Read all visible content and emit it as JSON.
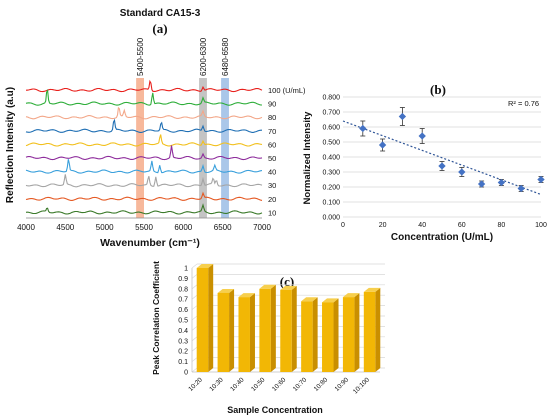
{
  "panel_a": {
    "header": "Standard CA15-3",
    "letter": "(a)",
    "band_labels": [
      "5400-5500",
      "6200-6300",
      "6480-6580"
    ],
    "concentration_unit_label": "100 (U/mL)"
  },
  "panel_b": {
    "letter": "(b)",
    "r2_label": "R² = 0.76"
  },
  "panel_c": {
    "letter": "(c)"
  },
  "colors": {
    "band_orange": "#f4a07a",
    "band_grey": "#b0b0b0",
    "band_blue": "#8db4e2",
    "marker_blue": "#4472c4",
    "bar_fill": "#f2b705",
    "bar_side": "#c98f00"
  },
  "chart_data": [
    {
      "type": "line",
      "title": "",
      "xlabel": "Wavenumber (cm⁻¹)",
      "ylabel": "Reflection Intensity (a.u)",
      "xlim": [
        4000,
        7000
      ],
      "xticks": [
        "4000",
        "4500",
        "5000",
        "5500",
        "6000",
        "6500",
        "7000"
      ],
      "highlight_bands": [
        [
          5400,
          5500
        ],
        [
          6200,
          6300
        ],
        [
          6480,
          6580
        ]
      ],
      "series": [
        {
          "name": "100",
          "color": "#e8201c",
          "peaks": [
            [
              5580,
              10
            ],
            [
              6250,
              4
            ]
          ]
        },
        {
          "name": "90",
          "color": "#2eae3a",
          "peaks": [
            [
              4270,
              14
            ],
            [
              5610,
              12
            ],
            [
              6250,
              5
            ]
          ]
        },
        {
          "name": "80",
          "color": "#f3a88a",
          "peaks": [
            [
              5180,
              10
            ],
            [
              5250,
              6
            ],
            [
              6250,
              5
            ]
          ]
        },
        {
          "name": "70",
          "color": "#1f6fb4",
          "peaks": [
            [
              5120,
              11
            ],
            [
              5720,
              8
            ],
            [
              6250,
              5
            ]
          ]
        },
        {
          "name": "60",
          "color": "#f2c01e",
          "peaks": [
            [
              5710,
              9
            ],
            [
              6250,
              4
            ]
          ]
        },
        {
          "name": "50",
          "color": "#8e2d9c",
          "peaks": [
            [
              5850,
              12
            ],
            [
              6250,
              4
            ]
          ]
        },
        {
          "name": "40",
          "color": "#3aa0dc",
          "peaks": [
            [
              4540,
              12
            ],
            [
              5600,
              10
            ],
            [
              5700,
              8
            ],
            [
              6250,
              6
            ],
            [
              6400,
              5
            ]
          ]
        },
        {
          "name": "30",
          "color": "#a5a5a5",
          "peaks": [
            [
              4500,
              10
            ],
            [
              5560,
              9
            ],
            [
              5650,
              10
            ],
            [
              6250,
              7
            ],
            [
              6380,
              6
            ],
            [
              6420,
              5
            ]
          ]
        },
        {
          "name": "20",
          "color": "#e55a24",
          "peaks": [
            [
              6250,
              5
            ]
          ]
        },
        {
          "name": "10",
          "color": "#3b7a2a",
          "peaks": [
            [
              4270,
              4
            ],
            [
              6250,
              6
            ]
          ]
        }
      ]
    },
    {
      "type": "scatter",
      "title": "",
      "xlabel": "Concentration (U/mL)",
      "ylabel": "Normalized Intensity",
      "xlim": [
        0,
        100
      ],
      "ylim": [
        0,
        0.8
      ],
      "xticks": [
        "0",
        "20",
        "40",
        "60",
        "80",
        "100"
      ],
      "yticks": [
        "0.000",
        "0.100",
        "0.200",
        "0.300",
        "0.400",
        "0.500",
        "0.600",
        "0.700",
        "0.800"
      ],
      "x": [
        10,
        20,
        30,
        40,
        50,
        60,
        70,
        80,
        90,
        100
      ],
      "y": [
        0.59,
        0.48,
        0.67,
        0.54,
        0.34,
        0.3,
        0.22,
        0.23,
        0.19,
        0.25
      ],
      "error": [
        0.05,
        0.04,
        0.06,
        0.05,
        0.03,
        0.03,
        0.02,
        0.02,
        0.02,
        0.02
      ],
      "trendline": {
        "type": "linear",
        "y_at_0": 0.64,
        "y_at_100": 0.15
      },
      "grid": true
    },
    {
      "type": "bar",
      "title": "",
      "xlabel": "Sample Concentration",
      "ylabel": "Peak Correlation Coefficient",
      "ylim": [
        0,
        1
      ],
      "yticks": [
        "0",
        "0.1",
        "0.2",
        "0.3",
        "0.4",
        "0.5",
        "0.6",
        "0.7",
        "0.8",
        "0.9",
        "1"
      ],
      "categories": [
        "10:20",
        "10:30",
        "10:40",
        "10:50",
        "10:60",
        "10:70",
        "10:80",
        "10:90",
        "10:100"
      ],
      "values": [
        1.0,
        0.76,
        0.72,
        0.8,
        0.79,
        0.68,
        0.67,
        0.72,
        0.77
      ],
      "grid": true
    }
  ]
}
